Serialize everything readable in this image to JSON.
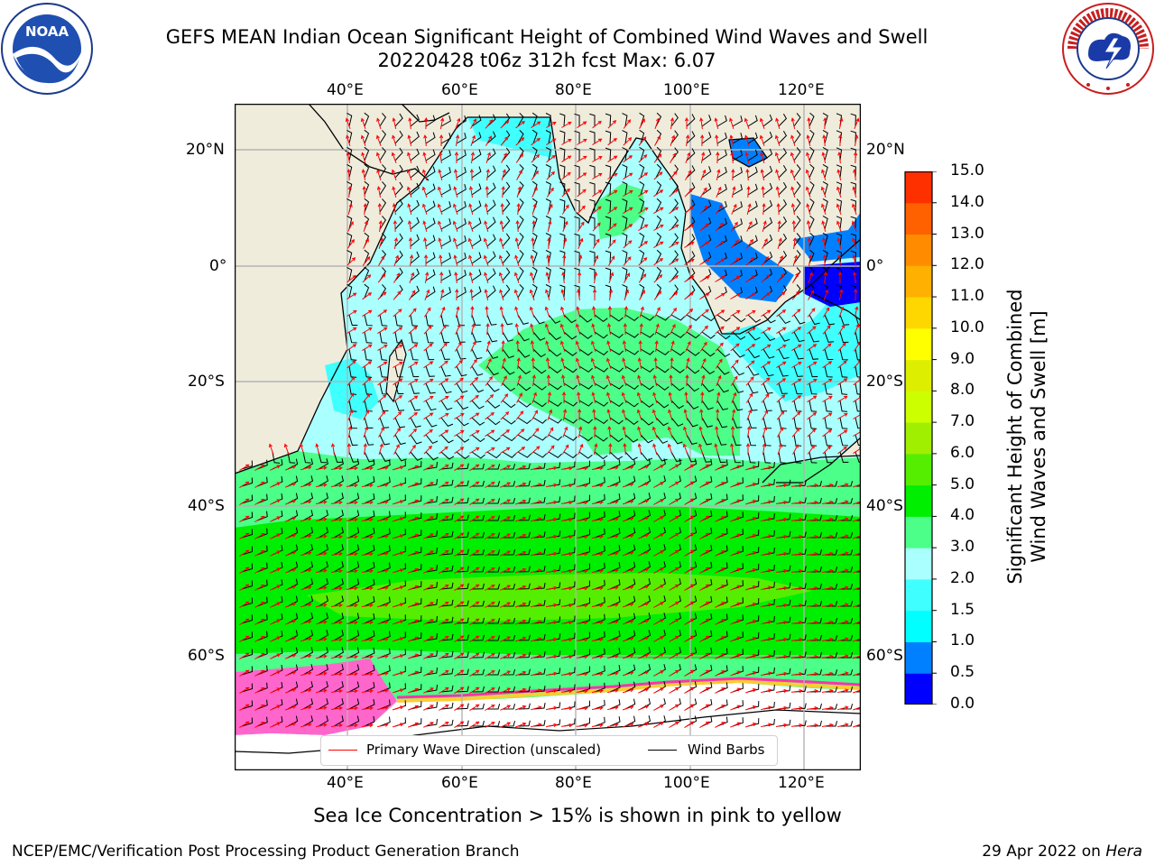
{
  "header": {
    "title_line1": "GEFS MEAN Indian Ocean Significant Height of Combined Wind Waves and Swell",
    "title_line2": "20220428 t06z 312h fcst   Max: 6.07"
  },
  "logos": {
    "left": "noaa-logo",
    "right": "national-weather-service-logo",
    "left_text": "NOAA",
    "right_text": "NATIONAL WEATHER SERVICE"
  },
  "map": {
    "lon_labels": [
      "40°E",
      "60°E",
      "80°E",
      "100°E",
      "120°E"
    ],
    "lat_labels": [
      "20°N",
      "0°",
      "20°S",
      "40°S",
      "60°S"
    ],
    "colors": {
      "land": "#efecdc",
      "grid": "#b3b3b3",
      "barb": "#000000",
      "wave_arrow": "#ff0000"
    }
  },
  "legend": {
    "primary_wave_direction": "Primary Wave Direction (unscaled)",
    "wind_barbs": "Wind Barbs"
  },
  "colorbar": {
    "label_line1": "Significant Height of Combined",
    "label_line2": "Wind Waves and Swell [m]",
    "ticks": [
      "0.0",
      "0.5",
      "1.0",
      "1.5",
      "2.0",
      "3.0",
      "4.0",
      "5.0",
      "6.0",
      "7.0",
      "8.0",
      "9.0",
      "10.0",
      "11.0",
      "12.0",
      "13.0",
      "14.0",
      "15.0"
    ],
    "colors": [
      "#0000ff",
      "#0080ff",
      "#00ffff",
      "#40ffff",
      "#aaffff",
      "#4cff88",
      "#00ee00",
      "#55ee00",
      "#a0ee00",
      "#ccff00",
      "#ddee00",
      "#ffff00",
      "#ffd700",
      "#ffb000",
      "#ff8c00",
      "#ff6000",
      "#ff3000",
      "#ff0000"
    ]
  },
  "annotations": {
    "sea_ice_note": "Sea Ice Concentration > 15% is shown in pink to yellow"
  },
  "footer": {
    "left": "NCEP/EMC/Verification Post Processing Product Generation Branch",
    "date": "29 Apr 2022 on ",
    "host": "Hera"
  }
}
